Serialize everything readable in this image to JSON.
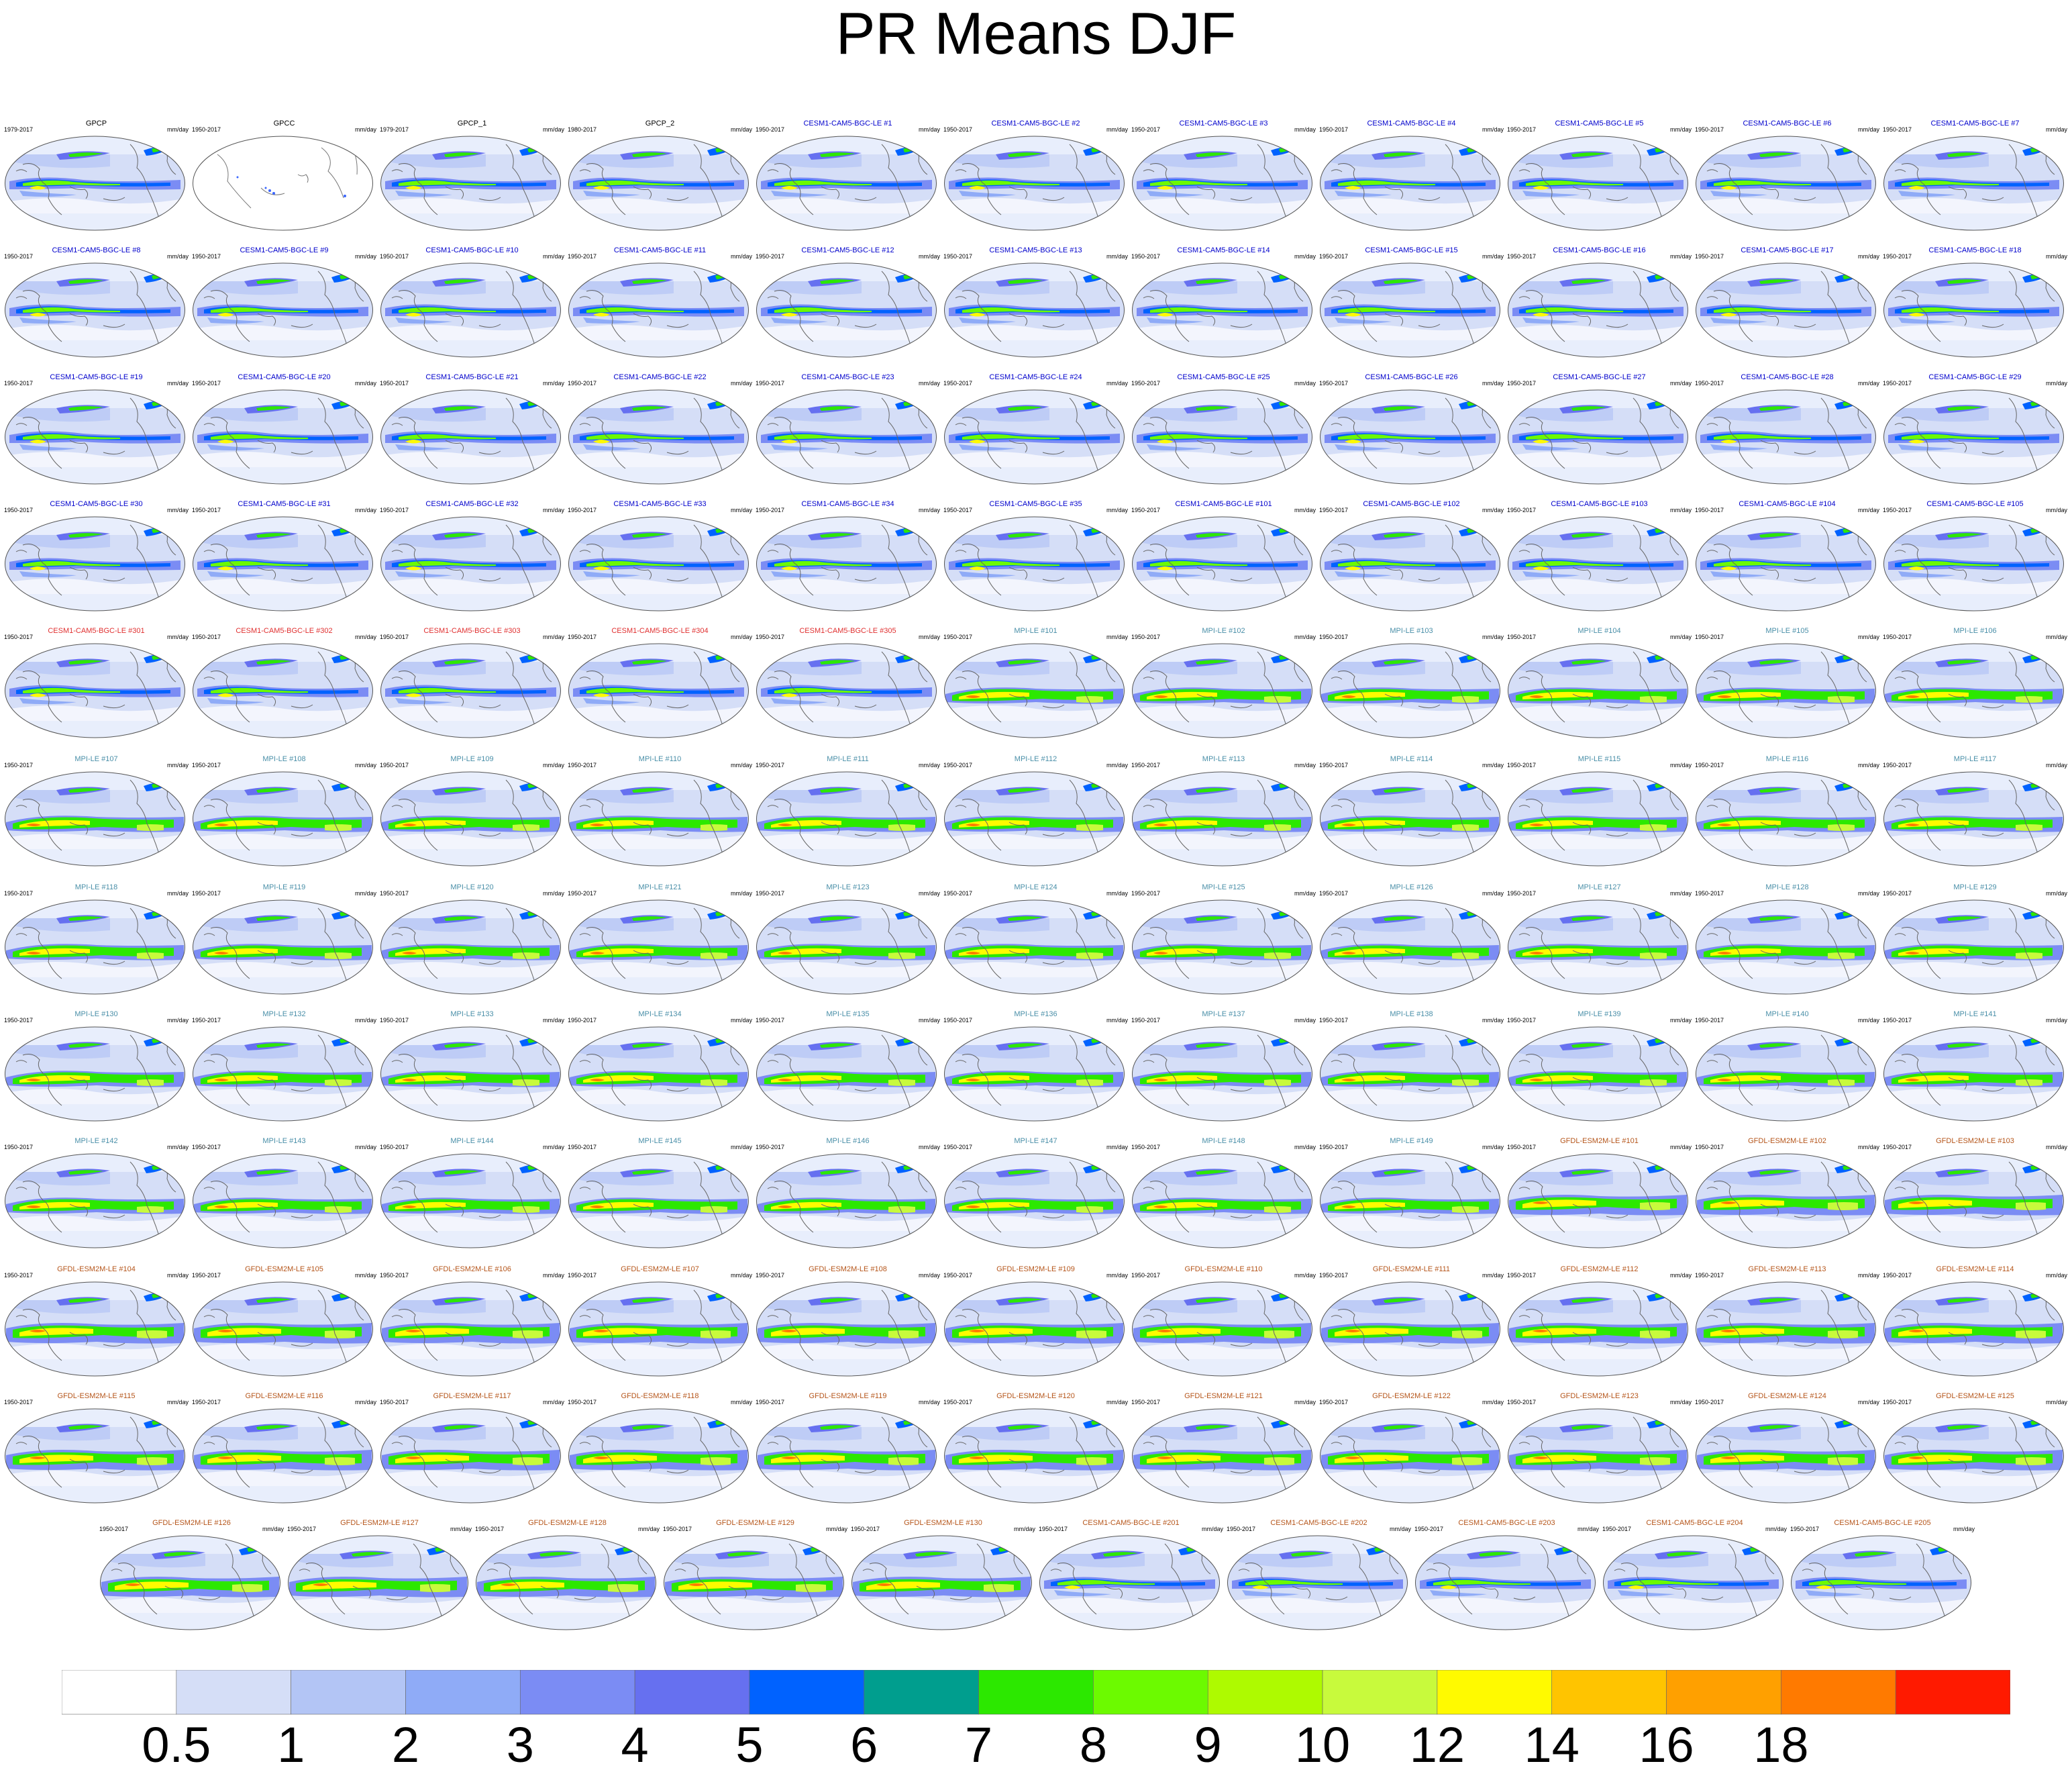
{
  "title": "PR Means DJF",
  "units": "mm/day",
  "group_colors": {
    "obs": "#000000",
    "CESM1-CAM5-BGC-LE": "#0000cc",
    "CESM1-CAM5-BGC-LE-3xx": "#e03030",
    "MPI-LE": "#4a8fa8",
    "GFDL-ESM2M-LE": "#b5551a",
    "CESM1-CAM5-BGC-LE-2xx": "#b5551a"
  },
  "panels": [
    {
      "title": "GPCP",
      "years": "1979-2017",
      "units": "mm/day",
      "group": "obs"
    },
    {
      "title": "GPCC",
      "years": "1950-2017",
      "units": "mm/day",
      "group": "obs"
    },
    {
      "title": "GPCP_1",
      "years": "1979-2017",
      "units": "mm/day",
      "group": "obs"
    },
    {
      "title": "GPCP_2",
      "years": "1980-2017",
      "units": "mm/day",
      "group": "obs"
    },
    {
      "title": "CESM1-CAM5-BGC-LE #1",
      "years": "1950-2017",
      "units": "mm/day",
      "group": "CESM1-CAM5-BGC-LE"
    },
    {
      "title": "CESM1-CAM5-BGC-LE #2",
      "years": "1950-2017",
      "units": "mm/day",
      "group": "CESM1-CAM5-BGC-LE"
    },
    {
      "title": "CESM1-CAM5-BGC-LE #3",
      "years": "1950-2017",
      "units": "mm/day",
      "group": "CESM1-CAM5-BGC-LE"
    },
    {
      "title": "CESM1-CAM5-BGC-LE #4",
      "years": "1950-2017",
      "units": "mm/day",
      "group": "CESM1-CAM5-BGC-LE"
    },
    {
      "title": "CESM1-CAM5-BGC-LE #5",
      "years": "1950-2017",
      "units": "mm/day",
      "group": "CESM1-CAM5-BGC-LE"
    },
    {
      "title": "CESM1-CAM5-BGC-LE #6",
      "years": "1950-2017",
      "units": "mm/day",
      "group": "CESM1-CAM5-BGC-LE"
    },
    {
      "title": "CESM1-CAM5-BGC-LE #7",
      "years": "1950-2017",
      "units": "mm/day",
      "group": "CESM1-CAM5-BGC-LE"
    },
    {
      "title": "CESM1-CAM5-BGC-LE #8",
      "years": "1950-2017",
      "units": "mm/day",
      "group": "CESM1-CAM5-BGC-LE"
    },
    {
      "title": "CESM1-CAM5-BGC-LE #9",
      "years": "1950-2017",
      "units": "mm/day",
      "group": "CESM1-CAM5-BGC-LE"
    },
    {
      "title": "CESM1-CAM5-BGC-LE #10",
      "years": "1950-2017",
      "units": "mm/day",
      "group": "CESM1-CAM5-BGC-LE"
    },
    {
      "title": "CESM1-CAM5-BGC-LE #11",
      "years": "1950-2017",
      "units": "mm/day",
      "group": "CESM1-CAM5-BGC-LE"
    },
    {
      "title": "CESM1-CAM5-BGC-LE #12",
      "years": "1950-2017",
      "units": "mm/day",
      "group": "CESM1-CAM5-BGC-LE"
    },
    {
      "title": "CESM1-CAM5-BGC-LE #13",
      "years": "1950-2017",
      "units": "mm/day",
      "group": "CESM1-CAM5-BGC-LE"
    },
    {
      "title": "CESM1-CAM5-BGC-LE #14",
      "years": "1950-2017",
      "units": "mm/day",
      "group": "CESM1-CAM5-BGC-LE"
    },
    {
      "title": "CESM1-CAM5-BGC-LE #15",
      "years": "1950-2017",
      "units": "mm/day",
      "group": "CESM1-CAM5-BGC-LE"
    },
    {
      "title": "CESM1-CAM5-BGC-LE #16",
      "years": "1950-2017",
      "units": "mm/day",
      "group": "CESM1-CAM5-BGC-LE"
    },
    {
      "title": "CESM1-CAM5-BGC-LE #17",
      "years": "1950-2017",
      "units": "mm/day",
      "group": "CESM1-CAM5-BGC-LE"
    },
    {
      "title": "CESM1-CAM5-BGC-LE #18",
      "years": "1950-2017",
      "units": "mm/day",
      "group": "CESM1-CAM5-BGC-LE"
    },
    {
      "title": "CESM1-CAM5-BGC-LE #19",
      "years": "1950-2017",
      "units": "mm/day",
      "group": "CESM1-CAM5-BGC-LE"
    },
    {
      "title": "CESM1-CAM5-BGC-LE #20",
      "years": "1950-2017",
      "units": "mm/day",
      "group": "CESM1-CAM5-BGC-LE"
    },
    {
      "title": "CESM1-CAM5-BGC-LE #21",
      "years": "1950-2017",
      "units": "mm/day",
      "group": "CESM1-CAM5-BGC-LE"
    },
    {
      "title": "CESM1-CAM5-BGC-LE #22",
      "years": "1950-2017",
      "units": "mm/day",
      "group": "CESM1-CAM5-BGC-LE"
    },
    {
      "title": "CESM1-CAM5-BGC-LE #23",
      "years": "1950-2017",
      "units": "mm/day",
      "group": "CESM1-CAM5-BGC-LE"
    },
    {
      "title": "CESM1-CAM5-BGC-LE #24",
      "years": "1950-2017",
      "units": "mm/day",
      "group": "CESM1-CAM5-BGC-LE"
    },
    {
      "title": "CESM1-CAM5-BGC-LE #25",
      "years": "1950-2017",
      "units": "mm/day",
      "group": "CESM1-CAM5-BGC-LE"
    },
    {
      "title": "CESM1-CAM5-BGC-LE #26",
      "years": "1950-2017",
      "units": "mm/day",
      "group": "CESM1-CAM5-BGC-LE"
    },
    {
      "title": "CESM1-CAM5-BGC-LE #27",
      "years": "1950-2017",
      "units": "mm/day",
      "group": "CESM1-CAM5-BGC-LE"
    },
    {
      "title": "CESM1-CAM5-BGC-LE #28",
      "years": "1950-2017",
      "units": "mm/day",
      "group": "CESM1-CAM5-BGC-LE"
    },
    {
      "title": "CESM1-CAM5-BGC-LE #29",
      "years": "1950-2017",
      "units": "mm/day",
      "group": "CESM1-CAM5-BGC-LE"
    },
    {
      "title": "CESM1-CAM5-BGC-LE #30",
      "years": "1950-2017",
      "units": "mm/day",
      "group": "CESM1-CAM5-BGC-LE"
    },
    {
      "title": "CESM1-CAM5-BGC-LE #31",
      "years": "1950-2017",
      "units": "mm/day",
      "group": "CESM1-CAM5-BGC-LE"
    },
    {
      "title": "CESM1-CAM5-BGC-LE #32",
      "years": "1950-2017",
      "units": "mm/day",
      "group": "CESM1-CAM5-BGC-LE"
    },
    {
      "title": "CESM1-CAM5-BGC-LE #33",
      "years": "1950-2017",
      "units": "mm/day",
      "group": "CESM1-CAM5-BGC-LE"
    },
    {
      "title": "CESM1-CAM5-BGC-LE #34",
      "years": "1950-2017",
      "units": "mm/day",
      "group": "CESM1-CAM5-BGC-LE"
    },
    {
      "title": "CESM1-CAM5-BGC-LE #35",
      "years": "1950-2017",
      "units": "mm/day",
      "group": "CESM1-CAM5-BGC-LE"
    },
    {
      "title": "CESM1-CAM5-BGC-LE #101",
      "years": "1950-2017",
      "units": "mm/day",
      "group": "CESM1-CAM5-BGC-LE"
    },
    {
      "title": "CESM1-CAM5-BGC-LE #102",
      "years": "1950-2017",
      "units": "mm/day",
      "group": "CESM1-CAM5-BGC-LE"
    },
    {
      "title": "CESM1-CAM5-BGC-LE #103",
      "years": "1950-2017",
      "units": "mm/day",
      "group": "CESM1-CAM5-BGC-LE"
    },
    {
      "title": "CESM1-CAM5-BGC-LE #104",
      "years": "1950-2017",
      "units": "mm/day",
      "group": "CESM1-CAM5-BGC-LE"
    },
    {
      "title": "CESM1-CAM5-BGC-LE #105",
      "years": "1950-2017",
      "units": "mm/day",
      "group": "CESM1-CAM5-BGC-LE"
    },
    {
      "title": "CESM1-CAM5-BGC-LE #301",
      "years": "1950-2017",
      "units": "mm/day",
      "group": "CESM1-CAM5-BGC-LE-3xx"
    },
    {
      "title": "CESM1-CAM5-BGC-LE #302",
      "years": "1950-2017",
      "units": "mm/day",
      "group": "CESM1-CAM5-BGC-LE-3xx"
    },
    {
      "title": "CESM1-CAM5-BGC-LE #303",
      "years": "1950-2017",
      "units": "mm/day",
      "group": "CESM1-CAM5-BGC-LE-3xx"
    },
    {
      "title": "CESM1-CAM5-BGC-LE #304",
      "years": "1950-2017",
      "units": "mm/day",
      "group": "CESM1-CAM5-BGC-LE-3xx"
    },
    {
      "title": "CESM1-CAM5-BGC-LE #305",
      "years": "1950-2017",
      "units": "mm/day",
      "group": "CESM1-CAM5-BGC-LE-3xx"
    },
    {
      "title": "MPI-LE #101",
      "years": "1950-2017",
      "units": "mm/day",
      "group": "MPI-LE"
    },
    {
      "title": "MPI-LE #102",
      "years": "1950-2017",
      "units": "mm/day",
      "group": "MPI-LE"
    },
    {
      "title": "MPI-LE #103",
      "years": "1950-2017",
      "units": "mm/day",
      "group": "MPI-LE"
    },
    {
      "title": "MPI-LE #104",
      "years": "1950-2017",
      "units": "mm/day",
      "group": "MPI-LE"
    },
    {
      "title": "MPI-LE #105",
      "years": "1950-2017",
      "units": "mm/day",
      "group": "MPI-LE"
    },
    {
      "title": "MPI-LE #106",
      "years": "1950-2017",
      "units": "mm/day",
      "group": "MPI-LE"
    },
    {
      "title": "MPI-LE #107",
      "years": "1950-2017",
      "units": "mm/day",
      "group": "MPI-LE"
    },
    {
      "title": "MPI-LE #108",
      "years": "1950-2017",
      "units": "mm/day",
      "group": "MPI-LE"
    },
    {
      "title": "MPI-LE #109",
      "years": "1950-2017",
      "units": "mm/day",
      "group": "MPI-LE"
    },
    {
      "title": "MPI-LE #110",
      "years": "1950-2017",
      "units": "mm/day",
      "group": "MPI-LE"
    },
    {
      "title": "MPI-LE #111",
      "years": "1950-2017",
      "units": "mm/day",
      "group": "MPI-LE"
    },
    {
      "title": "MPI-LE #112",
      "years": "1950-2017",
      "units": "mm/day",
      "group": "MPI-LE"
    },
    {
      "title": "MPI-LE #113",
      "years": "1950-2017",
      "units": "mm/day",
      "group": "MPI-LE"
    },
    {
      "title": "MPI-LE #114",
      "years": "1950-2017",
      "units": "mm/day",
      "group": "MPI-LE"
    },
    {
      "title": "MPI-LE #115",
      "years": "1950-2017",
      "units": "mm/day",
      "group": "MPI-LE"
    },
    {
      "title": "MPI-LE #116",
      "years": "1950-2017",
      "units": "mm/day",
      "group": "MPI-LE"
    },
    {
      "title": "MPI-LE #117",
      "years": "1950-2017",
      "units": "mm/day",
      "group": "MPI-LE"
    },
    {
      "title": "MPI-LE #118",
      "years": "1950-2017",
      "units": "mm/day",
      "group": "MPI-LE"
    },
    {
      "title": "MPI-LE #119",
      "years": "1950-2017",
      "units": "mm/day",
      "group": "MPI-LE"
    },
    {
      "title": "MPI-LE #120",
      "years": "1950-2017",
      "units": "mm/day",
      "group": "MPI-LE"
    },
    {
      "title": "MPI-LE #121",
      "years": "1950-2017",
      "units": "mm/day",
      "group": "MPI-LE"
    },
    {
      "title": "MPI-LE #123",
      "years": "1950-2017",
      "units": "mm/day",
      "group": "MPI-LE"
    },
    {
      "title": "MPI-LE #124",
      "years": "1950-2017",
      "units": "mm/day",
      "group": "MPI-LE"
    },
    {
      "title": "MPI-LE #125",
      "years": "1950-2017",
      "units": "mm/day",
      "group": "MPI-LE"
    },
    {
      "title": "MPI-LE #126",
      "years": "1950-2017",
      "units": "mm/day",
      "group": "MPI-LE"
    },
    {
      "title": "MPI-LE #127",
      "years": "1950-2017",
      "units": "mm/day",
      "group": "MPI-LE"
    },
    {
      "title": "MPI-LE #128",
      "years": "1950-2017",
      "units": "mm/day",
      "group": "MPI-LE"
    },
    {
      "title": "MPI-LE #129",
      "years": "1950-2017",
      "units": "mm/day",
      "group": "MPI-LE"
    },
    {
      "title": "MPI-LE #130",
      "years": "1950-2017",
      "units": "mm/day",
      "group": "MPI-LE"
    },
    {
      "title": "MPI-LE #132",
      "years": "1950-2017",
      "units": "mm/day",
      "group": "MPI-LE"
    },
    {
      "title": "MPI-LE #133",
      "years": "1950-2017",
      "units": "mm/day",
      "group": "MPI-LE"
    },
    {
      "title": "MPI-LE #134",
      "years": "1950-2017",
      "units": "mm/day",
      "group": "MPI-LE"
    },
    {
      "title": "MPI-LE #135",
      "years": "1950-2017",
      "units": "mm/day",
      "group": "MPI-LE"
    },
    {
      "title": "MPI-LE #136",
      "years": "1950-2017",
      "units": "mm/day",
      "group": "MPI-LE"
    },
    {
      "title": "MPI-LE #137",
      "years": "1950-2017",
      "units": "mm/day",
      "group": "MPI-LE"
    },
    {
      "title": "MPI-LE #138",
      "years": "1950-2017",
      "units": "mm/day",
      "group": "MPI-LE"
    },
    {
      "title": "MPI-LE #139",
      "years": "1950-2017",
      "units": "mm/day",
      "group": "MPI-LE"
    },
    {
      "title": "MPI-LE #140",
      "years": "1950-2017",
      "units": "mm/day",
      "group": "MPI-LE"
    },
    {
      "title": "MPI-LE #141",
      "years": "1950-2017",
      "units": "mm/day",
      "group": "MPI-LE"
    },
    {
      "title": "MPI-LE #142",
      "years": "1950-2017",
      "units": "mm/day",
      "group": "MPI-LE"
    },
    {
      "title": "MPI-LE #143",
      "years": "1950-2017",
      "units": "mm/day",
      "group": "MPI-LE"
    },
    {
      "title": "MPI-LE #144",
      "years": "1950-2017",
      "units": "mm/day",
      "group": "MPI-LE"
    },
    {
      "title": "MPI-LE #145",
      "years": "1950-2017",
      "units": "mm/day",
      "group": "MPI-LE"
    },
    {
      "title": "MPI-LE #146",
      "years": "1950-2017",
      "units": "mm/day",
      "group": "MPI-LE"
    },
    {
      "title": "MPI-LE #147",
      "years": "1950-2017",
      "units": "mm/day",
      "group": "MPI-LE"
    },
    {
      "title": "MPI-LE #148",
      "years": "1950-2017",
      "units": "mm/day",
      "group": "MPI-LE"
    },
    {
      "title": "MPI-LE #149",
      "years": "1950-2017",
      "units": "mm/day",
      "group": "MPI-LE"
    },
    {
      "title": "GFDL-ESM2M-LE #101",
      "years": "1950-2017",
      "units": "mm/day",
      "group": "GFDL-ESM2M-LE"
    },
    {
      "title": "GFDL-ESM2M-LE #102",
      "years": "1950-2017",
      "units": "mm/day",
      "group": "GFDL-ESM2M-LE"
    },
    {
      "title": "GFDL-ESM2M-LE #103",
      "years": "1950-2017",
      "units": "mm/day",
      "group": "GFDL-ESM2M-LE"
    },
    {
      "title": "GFDL-ESM2M-LE #104",
      "years": "1950-2017",
      "units": "mm/day",
      "group": "GFDL-ESM2M-LE"
    },
    {
      "title": "GFDL-ESM2M-LE #105",
      "years": "1950-2017",
      "units": "mm/day",
      "group": "GFDL-ESM2M-LE"
    },
    {
      "title": "GFDL-ESM2M-LE #106",
      "years": "1950-2017",
      "units": "mm/day",
      "group": "GFDL-ESM2M-LE"
    },
    {
      "title": "GFDL-ESM2M-LE #107",
      "years": "1950-2017",
      "units": "mm/day",
      "group": "GFDL-ESM2M-LE"
    },
    {
      "title": "GFDL-ESM2M-LE #108",
      "years": "1950-2017",
      "units": "mm/day",
      "group": "GFDL-ESM2M-LE"
    },
    {
      "title": "GFDL-ESM2M-LE #109",
      "years": "1950-2017",
      "units": "mm/day",
      "group": "GFDL-ESM2M-LE"
    },
    {
      "title": "GFDL-ESM2M-LE #110",
      "years": "1950-2017",
      "units": "mm/day",
      "group": "GFDL-ESM2M-LE"
    },
    {
      "title": "GFDL-ESM2M-LE #111",
      "years": "1950-2017",
      "units": "mm/day",
      "group": "GFDL-ESM2M-LE"
    },
    {
      "title": "GFDL-ESM2M-LE #112",
      "years": "1950-2017",
      "units": "mm/day",
      "group": "GFDL-ESM2M-LE"
    },
    {
      "title": "GFDL-ESM2M-LE #113",
      "years": "1950-2017",
      "units": "mm/day",
      "group": "GFDL-ESM2M-LE"
    },
    {
      "title": "GFDL-ESM2M-LE #114",
      "years": "1950-2017",
      "units": "mm/day",
      "group": "GFDL-ESM2M-LE"
    },
    {
      "title": "GFDL-ESM2M-LE #115",
      "years": "1950-2017",
      "units": "mm/day",
      "group": "GFDL-ESM2M-LE"
    },
    {
      "title": "GFDL-ESM2M-LE #116",
      "years": "1950-2017",
      "units": "mm/day",
      "group": "GFDL-ESM2M-LE"
    },
    {
      "title": "GFDL-ESM2M-LE #117",
      "years": "1950-2017",
      "units": "mm/day",
      "group": "GFDL-ESM2M-LE"
    },
    {
      "title": "GFDL-ESM2M-LE #118",
      "years": "1950-2017",
      "units": "mm/day",
      "group": "GFDL-ESM2M-LE"
    },
    {
      "title": "GFDL-ESM2M-LE #119",
      "years": "1950-2017",
      "units": "mm/day",
      "group": "GFDL-ESM2M-LE"
    },
    {
      "title": "GFDL-ESM2M-LE #120",
      "years": "1950-2017",
      "units": "mm/day",
      "group": "GFDL-ESM2M-LE"
    },
    {
      "title": "GFDL-ESM2M-LE #121",
      "years": "1950-2017",
      "units": "mm/day",
      "group": "GFDL-ESM2M-LE"
    },
    {
      "title": "GFDL-ESM2M-LE #122",
      "years": "1950-2017",
      "units": "mm/day",
      "group": "GFDL-ESM2M-LE"
    },
    {
      "title": "GFDL-ESM2M-LE #123",
      "years": "1950-2017",
      "units": "mm/day",
      "group": "GFDL-ESM2M-LE"
    },
    {
      "title": "GFDL-ESM2M-LE #124",
      "years": "1950-2017",
      "units": "mm/day",
      "group": "GFDL-ESM2M-LE"
    },
    {
      "title": "GFDL-ESM2M-LE #125",
      "years": "1950-2017",
      "units": "mm/day",
      "group": "GFDL-ESM2M-LE"
    },
    {
      "title": "GFDL-ESM2M-LE #126",
      "years": "1950-2017",
      "units": "mm/day",
      "group": "GFDL-ESM2M-LE"
    },
    {
      "title": "GFDL-ESM2M-LE #127",
      "years": "1950-2017",
      "units": "mm/day",
      "group": "GFDL-ESM2M-LE"
    },
    {
      "title": "GFDL-ESM2M-LE #128",
      "years": "1950-2017",
      "units": "mm/day",
      "group": "GFDL-ESM2M-LE"
    },
    {
      "title": "GFDL-ESM2M-LE #129",
      "years": "1950-2017",
      "units": "mm/day",
      "group": "GFDL-ESM2M-LE"
    },
    {
      "title": "GFDL-ESM2M-LE #130",
      "years": "1950-2017",
      "units": "mm/day",
      "group": "GFDL-ESM2M-LE"
    },
    {
      "title": "CESM1-CAM5-BGC-LE #201",
      "years": "1950-2017",
      "units": "mm/day",
      "group": "CESM1-CAM5-BGC-LE-2xx"
    },
    {
      "title": "CESM1-CAM5-BGC-LE #202",
      "years": "1950-2017",
      "units": "mm/day",
      "group": "CESM1-CAM5-BGC-LE-2xx"
    },
    {
      "title": "CESM1-CAM5-BGC-LE #203",
      "years": "1950-2017",
      "units": "mm/day",
      "group": "CESM1-CAM5-BGC-LE-2xx"
    },
    {
      "title": "CESM1-CAM5-BGC-LE #204",
      "years": "1950-2017",
      "units": "mm/day",
      "group": "CESM1-CAM5-BGC-LE-2xx"
    },
    {
      "title": "CESM1-CAM5-BGC-LE #205",
      "years": "1950-2017",
      "units": "mm/day",
      "group": "CESM1-CAM5-BGC-LE-2xx"
    }
  ],
  "chart_data": {
    "type": "heatmap",
    "title": "PR Means DJF",
    "units": "mm/day",
    "colorbar": {
      "labels": [
        "0.5",
        "1",
        "2",
        "3",
        "4",
        "5",
        "6",
        "7",
        "8",
        "9",
        "10",
        "12",
        "14",
        "16",
        "18"
      ],
      "colors": [
        "#ffffff",
        "#d5def7",
        "#b3c5f5",
        "#8fabf7",
        "#7b8cf4",
        "#6670f0",
        "#0062ff",
        "#009e8e",
        "#2ce800",
        "#6cfa00",
        "#aefa00",
        "#c8fa3c",
        "#fffa00",
        "#ffc400",
        "#ffa000",
        "#ff7a00",
        "#ff1a00"
      ]
    }
  }
}
